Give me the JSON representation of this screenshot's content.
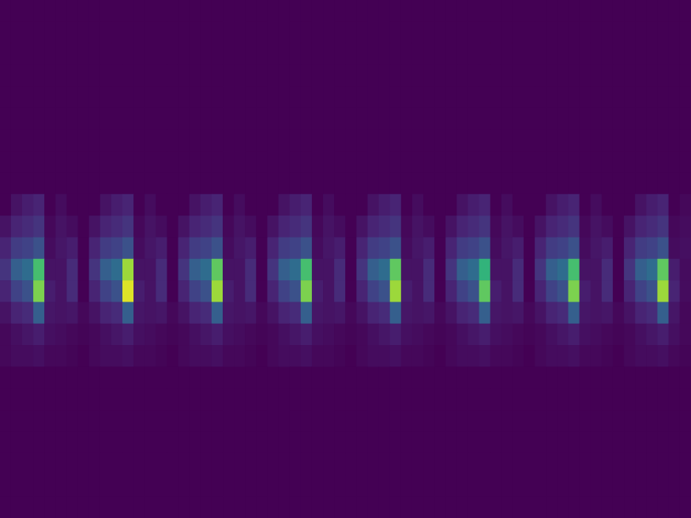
{
  "chart_data": {
    "type": "heatmap",
    "tick_labels": false,
    "grid": false,
    "color_range": [
      0,
      1
    ],
    "cells": [
      [
        0,
        0,
        0,
        0,
        0,
        0,
        0,
        0,
        0,
        0,
        0,
        0,
        0,
        0,
        0,
        0,
        0,
        0,
        0,
        0,
        0,
        0,
        0,
        0,
        0,
        0,
        0,
        0,
        0,
        0,
        0,
        0,
        0,
        0,
        0,
        0,
        0,
        0,
        0,
        0,
        0,
        0,
        0,
        0,
        0,
        0,
        0,
        0,
        0,
        0,
        0,
        0,
        0,
        0,
        0,
        0,
        0,
        0,
        0,
        0,
        0,
        0
      ],
      [
        0,
        0,
        0,
        0,
        0,
        0,
        0,
        0,
        0,
        0,
        0,
        0,
        0,
        0,
        0,
        0,
        0,
        0,
        0,
        0,
        0,
        0,
        0,
        0,
        0,
        0,
        0,
        0,
        0,
        0,
        0,
        0,
        0,
        0,
        0,
        0,
        0,
        0,
        0,
        0,
        0,
        0,
        0,
        0,
        0,
        0,
        0,
        0,
        0,
        0,
        0,
        0,
        0,
        0,
        0,
        0,
        0,
        0,
        0,
        0,
        0,
        0
      ],
      [
        0,
        0,
        0,
        0,
        0,
        0,
        0,
        0,
        0,
        0,
        0,
        0,
        0,
        0,
        0,
        0,
        0,
        0,
        0,
        0,
        0,
        0,
        0,
        0,
        0,
        0,
        0,
        0,
        0,
        0,
        0,
        0,
        0,
        0,
        0,
        0,
        0,
        0,
        0,
        0,
        0,
        0,
        0,
        0,
        0,
        0,
        0,
        0,
        0,
        0,
        0,
        0,
        0,
        0,
        0,
        0,
        0,
        0,
        0,
        0,
        0,
        0
      ],
      [
        0,
        0,
        0,
        0,
        0,
        0,
        0,
        0,
        0,
        0,
        0,
        0,
        0,
        0,
        0,
        0,
        0,
        0,
        0,
        0,
        0,
        0,
        0,
        0,
        0,
        0,
        0,
        0,
        0,
        0,
        0,
        0,
        0,
        0,
        0,
        0,
        0,
        0,
        0,
        0,
        0,
        0,
        0,
        0,
        0,
        0,
        0,
        0,
        0,
        0,
        0,
        0,
        0,
        0,
        0,
        0,
        0,
        0,
        0,
        0,
        0,
        0
      ],
      [
        0,
        0,
        0,
        0,
        0,
        0,
        0,
        0,
        0,
        0,
        0,
        0,
        0,
        0,
        0,
        0,
        0,
        0,
        0,
        0,
        0,
        0,
        0,
        0,
        0,
        0,
        0,
        0,
        0,
        0,
        0,
        0,
        0,
        0,
        0,
        0,
        0,
        0,
        0,
        0,
        0,
        0,
        0,
        0,
        0,
        0,
        0,
        0,
        0,
        0,
        0,
        0,
        0,
        0,
        0,
        0,
        0,
        0,
        0,
        0,
        0,
        0
      ],
      [
        0,
        0,
        0,
        0,
        0,
        0,
        0,
        0,
        0,
        0,
        0,
        0,
        0,
        0,
        0,
        0,
        0,
        0,
        0,
        0,
        0,
        0,
        0,
        0,
        0,
        0,
        0,
        0,
        0,
        0,
        0,
        0,
        0,
        0,
        0,
        0,
        0,
        0,
        0,
        0,
        0,
        0,
        0,
        0,
        0,
        0,
        0,
        0,
        0,
        0,
        0,
        0,
        0,
        0,
        0,
        0,
        0,
        0,
        0,
        0,
        0,
        0
      ],
      [
        0,
        0,
        0,
        0,
        0,
        0,
        0,
        0,
        0,
        0,
        0,
        0,
        0,
        0,
        0,
        0,
        0,
        0,
        0,
        0,
        0,
        0,
        0,
        0,
        0,
        0,
        0,
        0,
        0,
        0,
        0,
        0,
        0,
        0,
        0,
        0,
        0,
        0,
        0,
        0,
        0,
        0,
        0,
        0,
        0,
        0,
        0,
        0,
        0,
        0,
        0,
        0,
        0,
        0,
        0,
        0,
        0,
        0,
        0,
        0,
        0,
        0
      ],
      [
        0,
        0,
        0,
        0,
        0,
        0,
        0,
        0,
        0,
        0,
        0,
        0,
        0,
        0,
        0,
        0,
        0,
        0,
        0,
        0,
        0,
        0,
        0,
        0,
        0,
        0,
        0,
        0,
        0,
        0,
        0,
        0,
        0,
        0,
        0,
        0,
        0,
        0,
        0,
        0,
        0,
        0,
        0,
        0,
        0,
        0,
        0,
        0,
        0,
        0,
        0,
        0,
        0,
        0,
        0,
        0,
        0,
        0,
        0,
        0,
        0,
        0
      ],
      [
        0,
        0,
        0,
        0,
        0,
        0,
        0,
        0,
        0,
        0,
        0,
        0,
        0,
        0,
        0,
        0,
        0,
        0,
        0,
        0,
        0,
        0,
        0,
        0,
        0,
        0,
        0,
        0,
        0,
        0,
        0,
        0,
        0,
        0,
        0,
        0,
        0,
        0,
        0,
        0,
        0,
        0,
        0,
        0,
        0,
        0,
        0,
        0,
        0,
        0,
        0,
        0,
        0,
        0,
        0,
        0,
        0,
        0,
        0,
        0,
        0,
        0
      ],
      [
        0,
        0.05,
        0.08,
        0.1,
        0,
        0.03,
        0,
        0,
        0,
        0.05,
        0.08,
        0.1,
        0,
        0.03,
        0,
        0,
        0,
        0.05,
        0.08,
        0.1,
        0,
        0.03,
        0,
        0,
        0,
        0.05,
        0.08,
        0.1,
        0,
        0.03,
        0,
        0,
        0,
        0.05,
        0.08,
        0.1,
        0,
        0.03,
        0,
        0,
        0,
        0.05,
        0.08,
        0.1,
        0,
        0.03,
        0,
        0,
        0,
        0.05,
        0.08,
        0.1,
        0,
        0.03,
        0,
        0,
        0,
        0.05,
        0.08,
        0.1,
        0,
        0.02
      ],
      [
        0.05,
        0.1,
        0.12,
        0.15,
        0.02,
        0.05,
        0.03,
        0,
        0.05,
        0.1,
        0.12,
        0.15,
        0.02,
        0.05,
        0.03,
        0,
        0.05,
        0.1,
        0.12,
        0.15,
        0.02,
        0.05,
        0.03,
        0,
        0.05,
        0.1,
        0.12,
        0.15,
        0.02,
        0.05,
        0.03,
        0,
        0.05,
        0.1,
        0.12,
        0.15,
        0.02,
        0.05,
        0.03,
        0,
        0.05,
        0.1,
        0.12,
        0.15,
        0.02,
        0.05,
        0.03,
        0,
        0.05,
        0.1,
        0.12,
        0.15,
        0.02,
        0.05,
        0.03,
        0,
        0.05,
        0.1,
        0.12,
        0.15,
        0.02,
        0.03
      ],
      [
        0.1,
        0.18,
        0.2,
        0.25,
        0.03,
        0.06,
        0.08,
        0,
        0.1,
        0.18,
        0.2,
        0.25,
        0.03,
        0.06,
        0.08,
        0,
        0.1,
        0.18,
        0.2,
        0.25,
        0.03,
        0.06,
        0.08,
        0,
        0.1,
        0.18,
        0.2,
        0.25,
        0.03,
        0.06,
        0.08,
        0,
        0.1,
        0.18,
        0.2,
        0.25,
        0.03,
        0.06,
        0.08,
        0,
        0.1,
        0.18,
        0.2,
        0.25,
        0.03,
        0.06,
        0.08,
        0,
        0.1,
        0.18,
        0.2,
        0.25,
        0.03,
        0.06,
        0.08,
        0,
        0.1,
        0.18,
        0.2,
        0.25,
        0.03,
        0.04
      ],
      [
        0.15,
        0.3,
        0.35,
        0.7,
        0.05,
        0.05,
        0.12,
        0,
        0.15,
        0.3,
        0.35,
        0.85,
        0.05,
        0.05,
        0.12,
        0,
        0.15,
        0.3,
        0.35,
        0.75,
        0.05,
        0.05,
        0.12,
        0,
        0.15,
        0.3,
        0.35,
        0.7,
        0.05,
        0.05,
        0.12,
        0,
        0.15,
        0.3,
        0.35,
        0.75,
        0.05,
        0.05,
        0.12,
        0,
        0.15,
        0.3,
        0.35,
        0.65,
        0.05,
        0.05,
        0.12,
        0,
        0.15,
        0.3,
        0.35,
        0.7,
        0.05,
        0.05,
        0.12,
        0,
        0.15,
        0.3,
        0.35,
        0.75,
        0.08,
        0.03
      ],
      [
        0.1,
        0.2,
        0.25,
        0.8,
        0.08,
        0.05,
        0.12,
        0,
        0.1,
        0.2,
        0.25,
        0.95,
        0.08,
        0.05,
        0.12,
        0,
        0.1,
        0.2,
        0.25,
        0.85,
        0.08,
        0.05,
        0.12,
        0,
        0.1,
        0.2,
        0.25,
        0.8,
        0.08,
        0.05,
        0.12,
        0,
        0.1,
        0.2,
        0.25,
        0.85,
        0.08,
        0.05,
        0.12,
        0,
        0.1,
        0.2,
        0.25,
        0.75,
        0.08,
        0.05,
        0.12,
        0,
        0.1,
        0.2,
        0.25,
        0.8,
        0.08,
        0.05,
        0.12,
        0,
        0.1,
        0.2,
        0.25,
        0.85,
        0.1,
        0.03
      ],
      [
        0.05,
        0.1,
        0.12,
        0.3,
        0.06,
        0.05,
        0.06,
        0.02,
        0.05,
        0.1,
        0.12,
        0.3,
        0.06,
        0.05,
        0.06,
        0.02,
        0.05,
        0.1,
        0.12,
        0.3,
        0.06,
        0.05,
        0.06,
        0.02,
        0.05,
        0.1,
        0.12,
        0.3,
        0.06,
        0.05,
        0.06,
        0.02,
        0.05,
        0.1,
        0.12,
        0.3,
        0.06,
        0.05,
        0.06,
        0.02,
        0.05,
        0.1,
        0.12,
        0.3,
        0.06,
        0.05,
        0.06,
        0.02,
        0.05,
        0.1,
        0.12,
        0.3,
        0.06,
        0.05,
        0.06,
        0.02,
        0.05,
        0.1,
        0.12,
        0.3,
        0.06,
        0.02
      ],
      [
        0.02,
        0.04,
        0.06,
        0.08,
        0.04,
        0.03,
        0.02,
        0.01,
        0.02,
        0.04,
        0.06,
        0.08,
        0.04,
        0.03,
        0.02,
        0.01,
        0.02,
        0.04,
        0.06,
        0.08,
        0.04,
        0.03,
        0.02,
        0.01,
        0.02,
        0.04,
        0.06,
        0.08,
        0.04,
        0.03,
        0.02,
        0.01,
        0.02,
        0.04,
        0.06,
        0.08,
        0.04,
        0.03,
        0.02,
        0.01,
        0.02,
        0.04,
        0.06,
        0.08,
        0.04,
        0.03,
        0.02,
        0.01,
        0.02,
        0.04,
        0.06,
        0.08,
        0.04,
        0.03,
        0.02,
        0.01,
        0.02,
        0.04,
        0.06,
        0.08,
        0.04,
        0.02
      ],
      [
        0.02,
        0.03,
        0.03,
        0.04,
        0.02,
        0.02,
        0.01,
        0,
        0.02,
        0.03,
        0.03,
        0.04,
        0.02,
        0.02,
        0.01,
        0,
        0.02,
        0.03,
        0.03,
        0.04,
        0.02,
        0.02,
        0.01,
        0,
        0.02,
        0.03,
        0.03,
        0.04,
        0.02,
        0.02,
        0.01,
        0,
        0.02,
        0.03,
        0.03,
        0.04,
        0.02,
        0.02,
        0.01,
        0,
        0.02,
        0.03,
        0.03,
        0.04,
        0.02,
        0.02,
        0.01,
        0,
        0.02,
        0.03,
        0.03,
        0.04,
        0.02,
        0.02,
        0.01,
        0,
        0.02,
        0.03,
        0.03,
        0.04,
        0.02,
        0.01
      ],
      [
        0,
        0,
        0,
        0,
        0,
        0,
        0,
        0,
        0,
        0,
        0,
        0,
        0,
        0,
        0,
        0,
        0,
        0,
        0,
        0,
        0,
        0,
        0,
        0,
        0,
        0,
        0,
        0,
        0,
        0,
        0,
        0,
        0,
        0,
        0,
        0,
        0,
        0,
        0,
        0,
        0,
        0,
        0,
        0,
        0,
        0,
        0,
        0,
        0,
        0,
        0,
        0,
        0,
        0,
        0,
        0,
        0,
        0,
        0,
        0,
        0,
        0
      ],
      [
        0,
        0,
        0,
        0,
        0,
        0,
        0,
        0,
        0,
        0,
        0,
        0,
        0,
        0,
        0,
        0,
        0,
        0,
        0,
        0,
        0,
        0,
        0,
        0,
        0,
        0,
        0,
        0,
        0,
        0,
        0,
        0,
        0,
        0,
        0,
        0,
        0,
        0,
        0,
        0,
        0,
        0,
        0,
        0,
        0,
        0,
        0,
        0,
        0,
        0,
        0,
        0,
        0,
        0,
        0,
        0,
        0,
        0,
        0,
        0,
        0,
        0
      ],
      [
        0,
        0,
        0,
        0,
        0,
        0,
        0,
        0,
        0,
        0,
        0,
        0,
        0,
        0,
        0,
        0,
        0,
        0,
        0,
        0,
        0,
        0,
        0,
        0,
        0,
        0,
        0,
        0,
        0,
        0,
        0,
        0,
        0,
        0,
        0,
        0,
        0,
        0,
        0,
        0,
        0,
        0,
        0,
        0,
        0,
        0,
        0,
        0,
        0,
        0,
        0,
        0,
        0,
        0,
        0,
        0,
        0,
        0,
        0,
        0,
        0,
        0
      ],
      [
        0,
        0,
        0,
        0,
        0,
        0,
        0,
        0,
        0,
        0,
        0,
        0,
        0,
        0,
        0,
        0,
        0,
        0,
        0,
        0,
        0,
        0,
        0,
        0,
        0,
        0,
        0,
        0,
        0,
        0,
        0,
        0,
        0,
        0,
        0,
        0,
        0,
        0,
        0,
        0,
        0,
        0,
        0,
        0,
        0,
        0,
        0,
        0,
        0,
        0,
        0,
        0,
        0,
        0,
        0,
        0,
        0,
        0,
        0,
        0,
        0,
        0
      ],
      [
        0,
        0,
        0,
        0,
        0,
        0,
        0,
        0,
        0,
        0,
        0,
        0,
        0,
        0,
        0,
        0,
        0,
        0,
        0,
        0,
        0,
        0,
        0,
        0,
        0,
        0,
        0,
        0,
        0,
        0,
        0,
        0,
        0,
        0,
        0,
        0,
        0,
        0,
        0,
        0,
        0,
        0,
        0,
        0,
        0,
        0,
        0,
        0,
        0,
        0,
        0,
        0,
        0,
        0,
        0,
        0,
        0,
        0,
        0,
        0,
        0,
        0
      ],
      [
        0,
        0,
        0,
        0,
        0,
        0,
        0,
        0,
        0,
        0,
        0,
        0,
        0,
        0,
        0,
        0,
        0,
        0,
        0,
        0,
        0,
        0,
        0,
        0,
        0,
        0,
        0,
        0,
        0,
        0,
        0,
        0,
        0,
        0,
        0,
        0,
        0,
        0,
        0,
        0,
        0,
        0,
        0,
        0,
        0,
        0,
        0,
        0,
        0,
        0,
        0,
        0,
        0,
        0,
        0,
        0,
        0,
        0,
        0,
        0,
        0,
        0
      ],
      [
        0,
        0,
        0,
        0,
        0,
        0,
        0,
        0,
        0,
        0,
        0,
        0,
        0,
        0,
        0,
        0,
        0,
        0,
        0,
        0,
        0,
        0,
        0,
        0,
        0,
        0,
        0,
        0,
        0,
        0,
        0,
        0,
        0,
        0,
        0,
        0,
        0,
        0,
        0,
        0,
        0,
        0,
        0,
        0,
        0,
        0,
        0,
        0,
        0,
        0,
        0,
        0,
        0,
        0,
        0,
        0,
        0,
        0,
        0,
        0,
        0,
        0
      ]
    ]
  }
}
